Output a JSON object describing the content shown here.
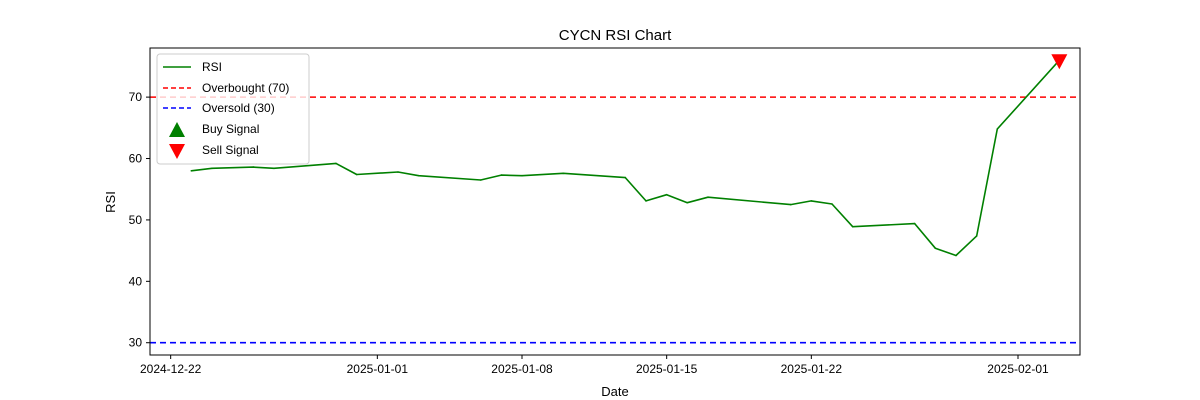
{
  "chart_data": {
    "type": "line",
    "title": "CYCN RSI Chart",
    "xlabel": "Date",
    "ylabel": "RSI",
    "ylim": [
      28,
      78
    ],
    "xlim": [
      "2024-12-21",
      "2025-02-04"
    ],
    "yticks": [
      30,
      40,
      50,
      60,
      70
    ],
    "xticks": [
      "2024-12-22",
      "2025-01-01",
      "2025-01-08",
      "2025-01-15",
      "2025-01-22",
      "2025-02-01"
    ],
    "legend_position": "top-left",
    "grid": false,
    "series": [
      {
        "name": "RSI",
        "color": "#008000",
        "x": [
          "2024-12-23",
          "2024-12-24",
          "2024-12-26",
          "2024-12-27",
          "2024-12-30",
          "2024-12-31",
          "2025-01-02",
          "2025-01-03",
          "2025-01-06",
          "2025-01-07",
          "2025-01-08",
          "2025-01-10",
          "2025-01-13",
          "2025-01-14",
          "2025-01-15",
          "2025-01-16",
          "2025-01-17",
          "2025-01-21",
          "2025-01-22",
          "2025-01-23",
          "2025-01-24",
          "2025-01-27",
          "2025-01-28",
          "2025-01-29",
          "2025-01-30",
          "2025-01-31",
          "2025-02-03"
        ],
        "values": [
          58.0,
          58.4,
          58.6,
          58.4,
          59.2,
          57.4,
          57.8,
          57.2,
          56.5,
          57.3,
          57.2,
          57.6,
          56.9,
          53.1,
          54.1,
          52.8,
          53.7,
          52.5,
          53.1,
          52.6,
          48.9,
          49.4,
          45.4,
          44.2,
          47.4,
          64.8,
          76.0
        ]
      }
    ],
    "reference_lines": [
      {
        "name": "Overbought (70)",
        "value": 70,
        "color": "#ff0000"
      },
      {
        "name": "Oversold (30)",
        "value": 30,
        "color": "#0000ff"
      }
    ],
    "signals": {
      "buy": {
        "name": "Buy Signal",
        "color": "#008000",
        "points": []
      },
      "sell": {
        "name": "Sell Signal",
        "color": "#ff0000",
        "points": [
          {
            "x": "2025-02-03",
            "y": 76.0
          }
        ]
      }
    }
  }
}
